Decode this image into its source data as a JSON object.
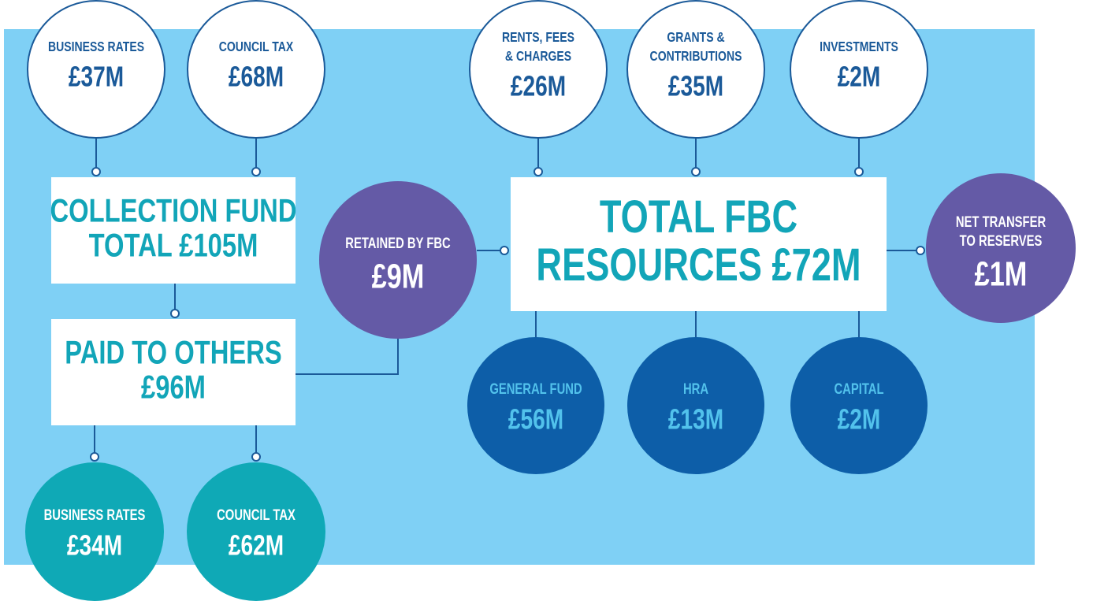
{
  "nodes": [
    {
      "label": [
        "BUSINESS RATES"
      ],
      "value": "£37M"
    },
    {
      "label": [
        "COUNCIL TAX"
      ],
      "value": "£68M"
    },
    {
      "label": [
        "RENTS, FEES",
        "& CHARGES"
      ],
      "value": "£26M"
    },
    {
      "label": [
        "GRANTS &",
        "CONTRIBUTIONS"
      ],
      "value": "£35M"
    },
    {
      "label": [
        "INVESTMENTS"
      ],
      "value": "£2M"
    },
    {
      "label": [
        "RETAINED BY FBC"
      ],
      "value": "£9M"
    },
    {
      "label": [
        "NET TRANSFER",
        "TO RESERVES"
      ],
      "value": "£1M"
    },
    {
      "label": [
        "GENERAL FUND"
      ],
      "value": "£56M"
    },
    {
      "label": [
        "HRA"
      ],
      "value": "£13M"
    },
    {
      "label": [
        "CAPITAL"
      ],
      "value": "£2M"
    },
    {
      "label": [
        "BUSINESS RATES"
      ],
      "value": "£34M"
    },
    {
      "label": [
        "COUNCIL TAX"
      ],
      "value": "£62M"
    }
  ],
  "boxes": [
    {
      "lines": [
        "COLLECTION FUND",
        "TOTAL £105M"
      ]
    },
    {
      "lines": [
        "PAID TO OTHERS",
        "£96M"
      ]
    },
    {
      "lines": [
        "TOTAL FBC",
        "RESOURCES £72M"
      ]
    }
  ]
}
